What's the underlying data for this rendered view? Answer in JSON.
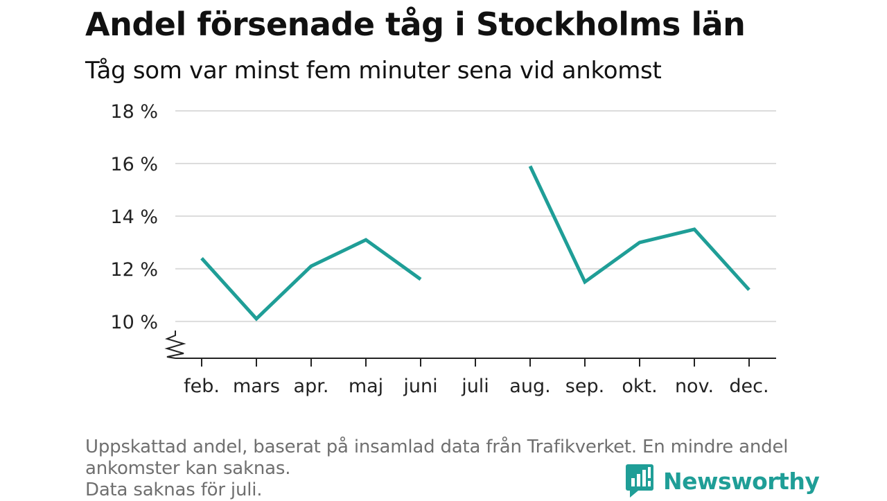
{
  "title": "Andel försenade tåg i Stockholms län",
  "subtitle": "Tåg som var minst fem minuter sena vid ankomst",
  "chart_data": {
    "type": "line",
    "categories": [
      "feb.",
      "mars",
      "apr.",
      "maj",
      "juni",
      "juli",
      "aug.",
      "sep.",
      "okt.",
      "nov.",
      "dec."
    ],
    "series": [
      {
        "values": [
          12.4,
          10.1,
          12.1,
          13.1,
          11.6,
          null,
          15.9,
          11.5,
          13.0,
          13.5,
          11.2
        ]
      }
    ],
    "yticks": [
      "10 %",
      "12 %",
      "14 %",
      "16 %",
      "18 %"
    ],
    "ytick_values": [
      10,
      12,
      14,
      16,
      18
    ],
    "ylim": [
      8.6,
      18
    ],
    "grid": true,
    "axis_break": true,
    "line_color": "#1f9e97"
  },
  "notes": [
    "Uppskattad andel, baserat på insamlad data från Trafikverket. En mindre andel",
    "ankomster kan saknas.",
    "Data saknas för juli."
  ],
  "logo": {
    "text": "Newsworthy",
    "color": "#1f9e97"
  }
}
